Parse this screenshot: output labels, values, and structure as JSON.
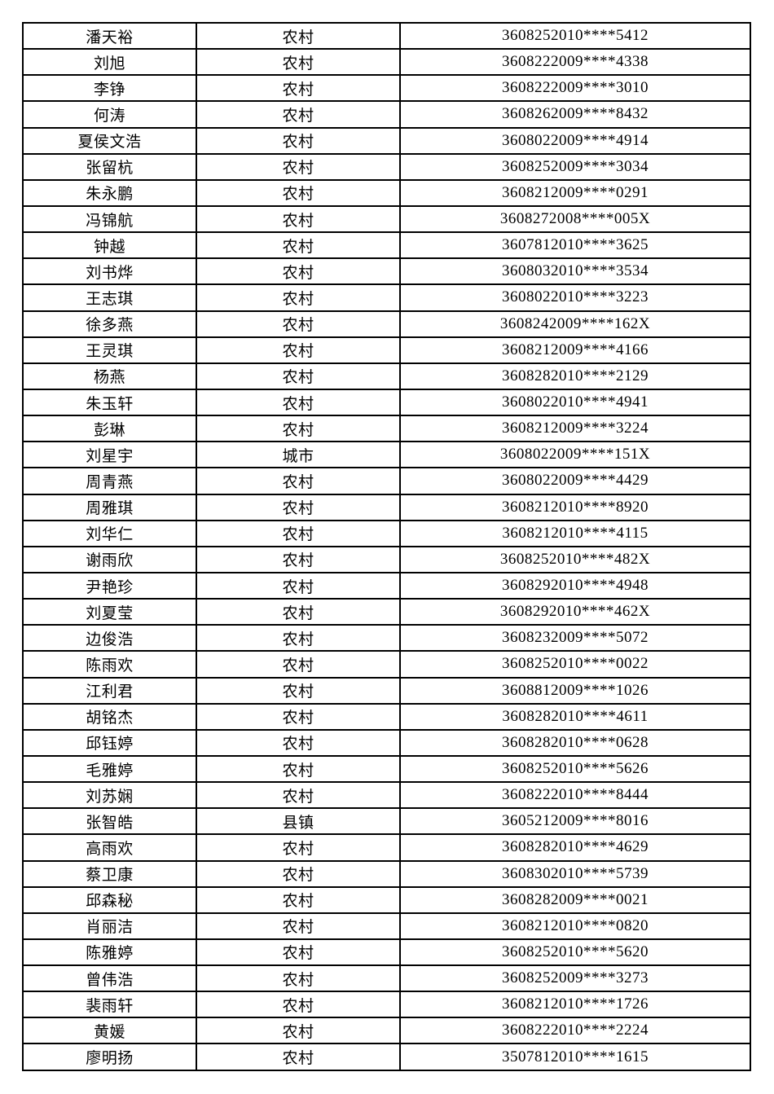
{
  "table": {
    "columns": [
      "name",
      "residence",
      "id_number"
    ],
    "residence_values_seen": [
      "农村",
      "城市",
      "县镇"
    ],
    "border_color": "#000000",
    "text_color": "#000000",
    "background_color": "#ffffff",
    "rows": [
      {
        "name": "潘天裕",
        "residence": "农村",
        "id": "3608252010****5412"
      },
      {
        "name": "刘旭",
        "residence": "农村",
        "id": "3608222009****4338"
      },
      {
        "name": "李铮",
        "residence": "农村",
        "id": "3608222009****3010"
      },
      {
        "name": "何涛",
        "residence": "农村",
        "id": "3608262009****8432"
      },
      {
        "name": "夏侯文浩",
        "residence": "农村",
        "id": "3608022009****4914"
      },
      {
        "name": "张留杭",
        "residence": "农村",
        "id": "3608252009****3034"
      },
      {
        "name": "朱永鹏",
        "residence": "农村",
        "id": "3608212009****0291"
      },
      {
        "name": "冯锦航",
        "residence": "农村",
        "id": "3608272008****005X"
      },
      {
        "name": "钟越",
        "residence": "农村",
        "id": "3607812010****3625"
      },
      {
        "name": "刘书烨",
        "residence": "农村",
        "id": "3608032010****3534"
      },
      {
        "name": "王志琪",
        "residence": "农村",
        "id": "3608022010****3223"
      },
      {
        "name": "徐多燕",
        "residence": "农村",
        "id": "3608242009****162X"
      },
      {
        "name": "王灵琪",
        "residence": "农村",
        "id": "3608212009****4166"
      },
      {
        "name": "杨燕",
        "residence": "农村",
        "id": "3608282010****2129"
      },
      {
        "name": "朱玉轩",
        "residence": "农村",
        "id": "3608022010****4941"
      },
      {
        "name": "彭琳",
        "residence": "农村",
        "id": "3608212009****3224"
      },
      {
        "name": "刘星宇",
        "residence": "城市",
        "id": "3608022009****151X"
      },
      {
        "name": "周青燕",
        "residence": "农村",
        "id": "3608022009****4429"
      },
      {
        "name": "周雅琪",
        "residence": "农村",
        "id": "3608212010****8920"
      },
      {
        "name": "刘华仁",
        "residence": "农村",
        "id": "3608212010****4115"
      },
      {
        "name": "谢雨欣",
        "residence": "农村",
        "id": "3608252010****482X"
      },
      {
        "name": "尹艳珍",
        "residence": "农村",
        "id": "3608292010****4948"
      },
      {
        "name": "刘夏莹",
        "residence": "农村",
        "id": "3608292010****462X"
      },
      {
        "name": "边俊浩",
        "residence": "农村",
        "id": "3608232009****5072"
      },
      {
        "name": "陈雨欢",
        "residence": "农村",
        "id": "3608252010****0022"
      },
      {
        "name": "江利君",
        "residence": "农村",
        "id": "3608812009****1026"
      },
      {
        "name": "胡铭杰",
        "residence": "农村",
        "id": "3608282010****4611"
      },
      {
        "name": "邱钰婷",
        "residence": "农村",
        "id": "3608282010****0628"
      },
      {
        "name": "毛雅婷",
        "residence": "农村",
        "id": "3608252010****5626"
      },
      {
        "name": "刘苏娴",
        "residence": "农村",
        "id": "3608222010****8444"
      },
      {
        "name": "张智皓",
        "residence": "县镇",
        "id": "3605212009****8016"
      },
      {
        "name": "高雨欢",
        "residence": "农村",
        "id": "3608282010****4629"
      },
      {
        "name": "蔡卫康",
        "residence": "农村",
        "id": "3608302010****5739"
      },
      {
        "name": "邱森秘",
        "residence": "农村",
        "id": "3608282009****0021"
      },
      {
        "name": "肖丽洁",
        "residence": "农村",
        "id": "3608212010****0820"
      },
      {
        "name": "陈雅婷",
        "residence": "农村",
        "id": "3608252010****5620"
      },
      {
        "name": "曾伟浩",
        "residence": "农村",
        "id": "3608252009****3273"
      },
      {
        "name": "裴雨轩",
        "residence": "农村",
        "id": "3608212010****1726"
      },
      {
        "name": "黄媛",
        "residence": "农村",
        "id": "3608222010****2224"
      },
      {
        "name": "廖明扬",
        "residence": "农村",
        "id": "3507812010****1615"
      }
    ]
  }
}
